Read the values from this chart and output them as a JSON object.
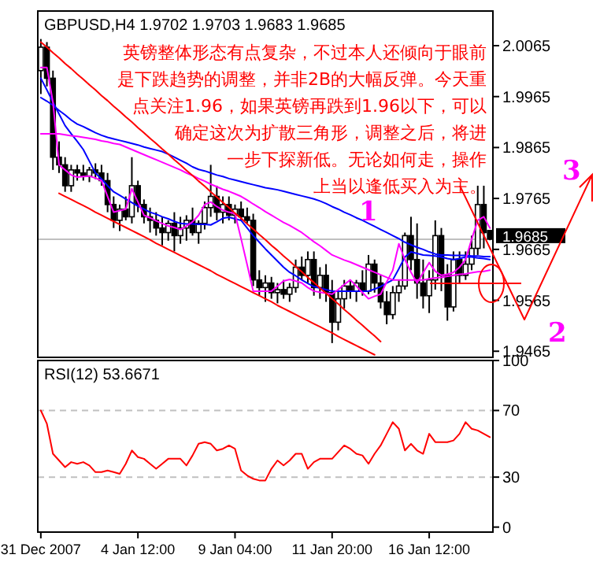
{
  "chart_data": [
    {
      "type": "candlestick",
      "title": "GBPUSD,H4 1.9702 1.9703 1.9683 1.9685",
      "tick_labels": "y",
      "categories": [
        null,
        null,
        null,
        null,
        null,
        null,
        null,
        null,
        null,
        null,
        null,
        null,
        null,
        null,
        null,
        null,
        null,
        null,
        null,
        null,
        null,
        null,
        null,
        null,
        null,
        null,
        null,
        null,
        null,
        null,
        null,
        null,
        null,
        null,
        null,
        null,
        null,
        null,
        null,
        null,
        null,
        null,
        null,
        null,
        null,
        null,
        null,
        null,
        null,
        null,
        null,
        null,
        null,
        null,
        null,
        null,
        null,
        null,
        null,
        null,
        null,
        null,
        null,
        null,
        null,
        null,
        null,
        null,
        null,
        null,
        null,
        null,
        null,
        null,
        null
      ],
      "ohlc": [
        [
          2.0016,
          2.0078,
          1.997,
          2.0062
        ],
        [
          2.0062,
          2.0072,
          1.9985,
          2.0001
        ],
        [
          2.0001,
          2.0016,
          1.9821,
          1.9846
        ],
        [
          1.9846,
          1.9877,
          1.9815,
          1.9831
        ],
        [
          1.9831,
          1.9846,
          1.9778,
          1.979
        ],
        [
          1.979,
          1.9831,
          1.9778,
          1.9821
        ],
        [
          1.9821,
          1.9831,
          1.98,
          1.9815
        ],
        [
          1.9815,
          1.9831,
          1.98,
          1.9809
        ],
        [
          1.9809,
          1.9827,
          1.9797,
          1.9821
        ],
        [
          1.9821,
          1.9834,
          1.9803,
          1.9815
        ],
        [
          1.9815,
          1.9831,
          1.979,
          1.98
        ],
        [
          1.98,
          1.9815,
          1.9738,
          1.9753
        ],
        [
          1.9753,
          1.9769,
          1.9707,
          1.9722
        ],
        [
          1.9722,
          1.9753,
          1.9701,
          1.9744
        ],
        [
          1.9744,
          1.9769,
          1.9722,
          1.9729
        ],
        [
          1.9729,
          1.9846,
          1.9716,
          1.979
        ],
        [
          1.979,
          1.98,
          1.9738,
          1.9753
        ],
        [
          1.9753,
          1.9763,
          1.9716,
          1.9729
        ],
        [
          1.9729,
          1.9747,
          1.9698,
          1.9722
        ],
        [
          1.9722,
          1.9738,
          1.9692,
          1.9707
        ],
        [
          1.9707,
          1.9729,
          1.9673,
          1.9698
        ],
        [
          1.9698,
          1.9722,
          1.9682,
          1.9716
        ],
        [
          1.9716,
          1.9738,
          1.9661,
          1.9692
        ],
        [
          1.9692,
          1.9729,
          1.9676,
          1.9707
        ],
        [
          1.9707,
          1.9732,
          1.9682,
          1.9722
        ],
        [
          1.9722,
          1.9747,
          1.9692,
          1.9698
        ],
        [
          1.9698,
          1.9722,
          1.9676,
          1.9716
        ],
        [
          1.9716,
          1.9759,
          1.9704,
          1.9747
        ],
        [
          1.9747,
          1.9831,
          1.9729,
          1.9769
        ],
        [
          1.9769,
          1.979,
          1.9722,
          1.9738
        ],
        [
          1.9738,
          1.9769,
          1.9716,
          1.9753
        ],
        [
          1.9753,
          1.9769,
          1.9722,
          1.9732
        ],
        [
          1.9732,
          1.9753,
          1.9716,
          1.9744
        ],
        [
          1.9744,
          1.9759,
          1.9722,
          1.9729
        ],
        [
          1.9729,
          1.9747,
          1.9716,
          1.9722
        ],
        [
          1.9722,
          1.9735,
          1.9593,
          1.9605
        ],
        [
          1.9605,
          1.9624,
          1.9574,
          1.959
        ],
        [
          1.959,
          1.9614,
          1.9562,
          1.9599
        ],
        [
          1.9599,
          1.9611,
          1.9568,
          1.958
        ],
        [
          1.958,
          1.9599,
          1.9559,
          1.9586
        ],
        [
          1.9586,
          1.9605,
          1.9568,
          1.9577
        ],
        [
          1.9577,
          1.9599,
          1.9562,
          1.959
        ],
        [
          1.959,
          1.9645,
          1.958,
          1.963
        ],
        [
          1.963,
          1.9651,
          1.9605,
          1.9614
        ],
        [
          1.9614,
          1.9661,
          1.9599,
          1.9645
        ],
        [
          1.9645,
          1.9661,
          1.9574,
          1.959
        ],
        [
          1.959,
          1.963,
          1.9568,
          1.9614
        ],
        [
          1.9614,
          1.9636,
          1.9562,
          1.958
        ],
        [
          1.958,
          1.9605,
          1.9481,
          1.9522
        ],
        [
          1.9522,
          1.9583,
          1.9506,
          1.9568
        ],
        [
          1.9568,
          1.9605,
          1.9549,
          1.9593
        ],
        [
          1.9593,
          1.9605,
          1.9568,
          1.9583
        ],
        [
          1.9583,
          1.9605,
          1.9562,
          1.9599
        ],
        [
          1.9599,
          1.9624,
          1.9574,
          1.9583
        ],
        [
          1.9583,
          1.9654,
          1.9577,
          1.9636
        ],
        [
          1.9636,
          1.9645,
          1.958,
          1.9599
        ],
        [
          1.9599,
          1.9614,
          1.9549,
          1.9562
        ],
        [
          1.9562,
          1.9583,
          1.9518,
          1.9537
        ],
        [
          1.9537,
          1.9593,
          1.9528,
          1.958
        ],
        [
          1.958,
          1.9605,
          1.9562,
          1.9593
        ],
        [
          1.9593,
          1.9698,
          1.9586,
          1.9692
        ],
        [
          1.9692,
          1.9729,
          1.9624,
          1.9645
        ],
        [
          1.9645,
          1.9716,
          1.9568,
          1.9599
        ],
        [
          1.9599,
          1.9645,
          1.9549,
          1.9574
        ],
        [
          1.9574,
          1.9624,
          1.954,
          1.9605
        ],
        [
          1.9605,
          1.9722,
          1.9586,
          1.9692
        ],
        [
          1.9692,
          1.9707,
          1.9583,
          1.9614
        ],
        [
          1.9614,
          1.9636,
          1.9525,
          1.9552
        ],
        [
          1.9552,
          1.9661,
          1.9543,
          1.9645
        ],
        [
          1.9645,
          1.9661,
          1.9599,
          1.9614
        ],
        [
          1.9614,
          1.9661,
          1.9605,
          1.9636
        ],
        [
          1.9636,
          1.9692,
          1.9624,
          1.9667
        ],
        [
          1.9667,
          1.979,
          1.9654,
          1.9753
        ],
        [
          1.9753,
          1.979,
          1.9667,
          1.9698
        ],
        [
          1.9702,
          1.9703,
          1.9683,
          1.9685
        ]
      ],
      "series": [
        {
          "type": "line",
          "color": "#0000ff",
          "values": [
            1.9963,
            1.9956,
            1.9948,
            1.9938,
            1.9929,
            1.9919,
            1.9911,
            1.9906,
            1.99,
            1.9894,
            1.9889,
            1.9885,
            1.9882,
            1.9879,
            1.9876,
            1.9873,
            1.987,
            1.9866,
            1.9863,
            1.986,
            1.9857,
            1.9852,
            1.9846,
            1.984,
            1.9834,
            1.9827,
            1.9822,
            1.9819,
            1.9815,
            1.9811,
            1.9808,
            1.9804,
            1.9801,
            1.9798,
            1.9795,
            1.9792,
            1.9789,
            1.9786,
            1.9784,
            1.9782,
            1.9779,
            1.9776,
            1.9773,
            1.977,
            1.9767,
            1.9764,
            1.976,
            1.9755,
            1.9749,
            1.9744,
            1.9738,
            1.9733,
            1.9727,
            1.9722,
            1.9716,
            1.971,
            1.9704,
            1.9698,
            1.9692,
            1.9686,
            1.9679,
            1.9674,
            1.9669,
            1.9665,
            1.966,
            1.9656,
            1.9654,
            1.9654,
            1.9653,
            1.9653,
            1.9653,
            1.9652,
            1.9652,
            1.9651,
            1.9651
          ]
        },
        {
          "type": "line",
          "color": "#0000ff",
          "values": [
            2.0001,
            1.9978,
            1.9954,
            1.9931,
            1.9908,
            1.9892,
            1.9877,
            1.9861,
            1.9838,
            1.9815,
            1.9803,
            1.979,
            1.9778,
            1.9771,
            1.9764,
            1.9757,
            1.975,
            1.9744,
            1.9738,
            1.9734,
            1.9729,
            1.9725,
            1.972,
            1.9716,
            1.9715,
            1.9715,
            1.9714,
            1.9714,
            1.9713,
            1.9719,
            1.9726,
            1.9728,
            1.9725,
            1.9722,
            1.9707,
            1.9692,
            1.9679,
            1.9666,
            1.9654,
            1.9642,
            1.963,
            1.962,
            1.9613,
            1.9605,
            1.9598,
            1.9592,
            1.9589,
            1.9586,
            1.9583,
            1.9583,
            1.9583,
            1.9583,
            1.9583,
            1.9583,
            1.9583,
            1.9587,
            1.9592,
            1.9599,
            1.9605,
            1.9627,
            1.965,
            1.966,
            1.9657,
            1.9654,
            1.9653,
            1.9652,
            1.965,
            1.9647,
            1.9645,
            1.9647,
            1.965,
            1.965,
            1.9648,
            1.9647,
            1.9645
          ]
        },
        {
          "type": "line",
          "color": "#ff00ff",
          "values": [
            1.9892,
            1.9892,
            1.9892,
            1.9892,
            1.989,
            1.9888,
            1.9887,
            1.9885,
            1.9883,
            1.9881,
            1.9878,
            1.9876,
            1.9873,
            1.9871,
            1.9866,
            1.9861,
            1.9856,
            1.9851,
            1.9846,
            1.9841,
            1.9836,
            1.9831,
            1.9826,
            1.9821,
            1.9815,
            1.981,
            1.9804,
            1.9799,
            1.9793,
            1.9788,
            1.9783,
            1.9779,
            1.9774,
            1.9769,
            1.9762,
            1.9754,
            1.9747,
            1.9739,
            1.9732,
            1.9725,
            1.9718,
            1.9712,
            1.9705,
            1.9698,
            1.9689,
            1.968,
            1.9672,
            1.9663,
            1.9654,
            1.9649,
            1.9644,
            1.964,
            1.9635,
            1.963,
            1.9625,
            1.962,
            1.9615,
            1.961,
            1.9605,
            1.9605,
            1.9605,
            1.9605,
            1.9605,
            1.9605,
            1.9607,
            1.9609,
            1.961,
            1.9612,
            1.9614,
            1.9616,
            1.9617,
            1.9619,
            1.9621,
            1.9622,
            1.9624
          ]
        },
        {
          "type": "line",
          "color": "#ff00ff",
          "values": [
            2.0022,
            2.0022,
            1.9954,
            1.9831,
            1.9821,
            1.9811,
            1.9807,
            1.9808,
            1.9809,
            1.9805,
            1.98,
            1.9769,
            1.9738,
            1.9741,
            1.9744,
            1.9784,
            1.9758,
            1.9732,
            1.9727,
            1.9721,
            1.9716,
            1.9711,
            1.9708,
            1.9704,
            1.9711,
            1.9719,
            1.9732,
            1.9753,
            1.9758,
            1.9749,
            1.9742,
            1.9738,
            1.9735,
            1.9686,
            1.9635,
            1.9583,
            1.9583,
            1.9583,
            1.9583,
            1.9593,
            1.9603,
            1.9606,
            1.9603,
            1.9599,
            1.959,
            1.9583,
            1.9581,
            1.9579,
            1.9577,
            1.9586,
            1.9596,
            1.9605,
            1.9593,
            1.958,
            1.9568,
            1.9573,
            1.9577,
            1.9601,
            1.9624,
            1.9676,
            1.9645,
            1.962,
            1.9599,
            1.9619,
            1.9639,
            1.9622,
            1.9614,
            1.9616,
            1.962,
            1.963,
            1.9645,
            1.9685,
            1.9722,
            1.9729,
            1.9707
          ]
        },
        {
          "type": "line",
          "color": "#ff0000",
          "values": [
            2.0072,
            2.0062,
            2.0051,
            2.0041,
            2.003,
            2.002,
            2.0009,
            1.9999,
            1.9988,
            1.9978,
            1.9967,
            1.9957,
            1.9946,
            1.9936,
            1.9925,
            1.9915,
            1.9904,
            1.9894,
            1.9883,
            1.9873,
            1.9862,
            1.9852,
            1.9841,
            1.9831,
            1.982,
            1.981,
            1.9799,
            1.9789,
            1.9778,
            1.9768,
            1.9757,
            1.9747,
            1.9736,
            1.9726,
            1.9715,
            1.9705,
            1.9694,
            1.9684,
            1.9673,
            1.9663,
            1.9652,
            1.9642,
            1.9631,
            1.9621,
            1.961,
            1.96,
            1.9589,
            1.9579,
            1.9568,
            1.9558,
            1.9547,
            1.9537,
            1.9526,
            1.9516,
            1.9505,
            1.9495,
            1.9484,
            null,
            null,
            null,
            null,
            null,
            null,
            null,
            null,
            null,
            null,
            null,
            null,
            null,
            null,
            null,
            null,
            null,
            null
          ]
        },
        {
          "type": "line",
          "color": "#ff0000",
          "values": [
            null,
            null,
            null,
            1.9775,
            1.9769,
            1.9763,
            1.9757,
            1.9751,
            1.9745,
            1.9738,
            1.9732,
            1.9726,
            1.972,
            1.9714,
            1.9708,
            1.9702,
            1.9696,
            1.969,
            1.9684,
            1.9677,
            1.9671,
            1.9665,
            1.9659,
            1.9653,
            1.9647,
            1.9641,
            1.9635,
            1.9629,
            1.9623,
            1.9616,
            1.961,
            1.9604,
            1.9598,
            1.9592,
            1.9586,
            1.958,
            1.9574,
            1.9568,
            1.9562,
            1.9555,
            1.9549,
            1.9543,
            1.9537,
            1.9531,
            1.9525,
            1.9519,
            1.9513,
            1.9507,
            1.9501,
            1.9494,
            1.9488,
            1.9482,
            1.9476,
            1.947,
            1.9464,
            1.9458,
            null,
            null,
            null,
            null,
            null,
            null,
            null,
            null,
            null,
            null,
            null,
            null,
            null,
            null,
            null,
            null,
            null,
            null,
            null
          ]
        }
      ],
      "ylim": [
        1.9453,
        2.0133
      ],
      "yticks": [
        1.9465,
        1.9565,
        1.9665,
        1.9765,
        1.9865,
        1.9965,
        2.0065
      ],
      "ref_lines": [
        {
          "axis": "y",
          "value": 1.9685,
          "label": "1.9685",
          "color": "#c0c0c0"
        }
      ],
      "annotations": [
        "英镑整体形态有点复杂，不过本人还倾向于眼前",
        "是下跌趋势的调整，并非2B的大幅反弹。今天重",
        "点关注1.96，如果英镑再跌到1.96以下，可以",
        "确定这次为扩散三角形，调整之后，将进",
        "一步下探新低。无论如何走，操作",
        "上当以逢低买入为主。",
        "1",
        "2",
        "3"
      ]
    },
    {
      "type": "line",
      "title": "RSI(12) 53.6671",
      "color": "#ff0000",
      "categories": [
        "31 Dec 2007",
        null,
        null,
        null,
        null,
        null,
        null,
        null,
        null,
        null,
        null,
        null,
        null,
        null,
        null,
        null,
        "4 Jan 12:00",
        null,
        null,
        null,
        null,
        null,
        null,
        null,
        null,
        null,
        null,
        null,
        null,
        null,
        null,
        null,
        "9 Jan 04:00",
        null,
        null,
        null,
        null,
        null,
        null,
        null,
        null,
        null,
        null,
        null,
        null,
        null,
        null,
        null,
        "11 Jan 20:00",
        null,
        null,
        null,
        null,
        null,
        null,
        null,
        null,
        null,
        null,
        null,
        null,
        null,
        null,
        null,
        "16 Jan 12:00",
        null,
        null,
        null,
        null,
        null,
        null,
        null,
        null,
        null,
        null
      ],
      "values": [
        70,
        62,
        44,
        40,
        36,
        39,
        38,
        39,
        37,
        33,
        33,
        34,
        33,
        32,
        38,
        46,
        42,
        41,
        38,
        35,
        38,
        41,
        41,
        41,
        37,
        43,
        50,
        51,
        50,
        46,
        47,
        49,
        47,
        34,
        31,
        29,
        28,
        28,
        35,
        40,
        37,
        40,
        44,
        44,
        35,
        39,
        41,
        41,
        41,
        45,
        49,
        47,
        44,
        43,
        38,
        44,
        49,
        56,
        63,
        59,
        46,
        50,
        46,
        44,
        56,
        51,
        51,
        51,
        52,
        56,
        63,
        59,
        58,
        56,
        54
      ],
      "ylim": [
        -3,
        100
      ],
      "yticks": [
        0,
        30,
        70,
        100
      ],
      "ref_lines": [
        {
          "axis": "y",
          "value": 30,
          "color": "#c0c0c0",
          "line_style": "dashed"
        },
        {
          "axis": "y",
          "value": 70,
          "color": "#c0c0c0",
          "line_style": "dashed"
        }
      ]
    }
  ]
}
